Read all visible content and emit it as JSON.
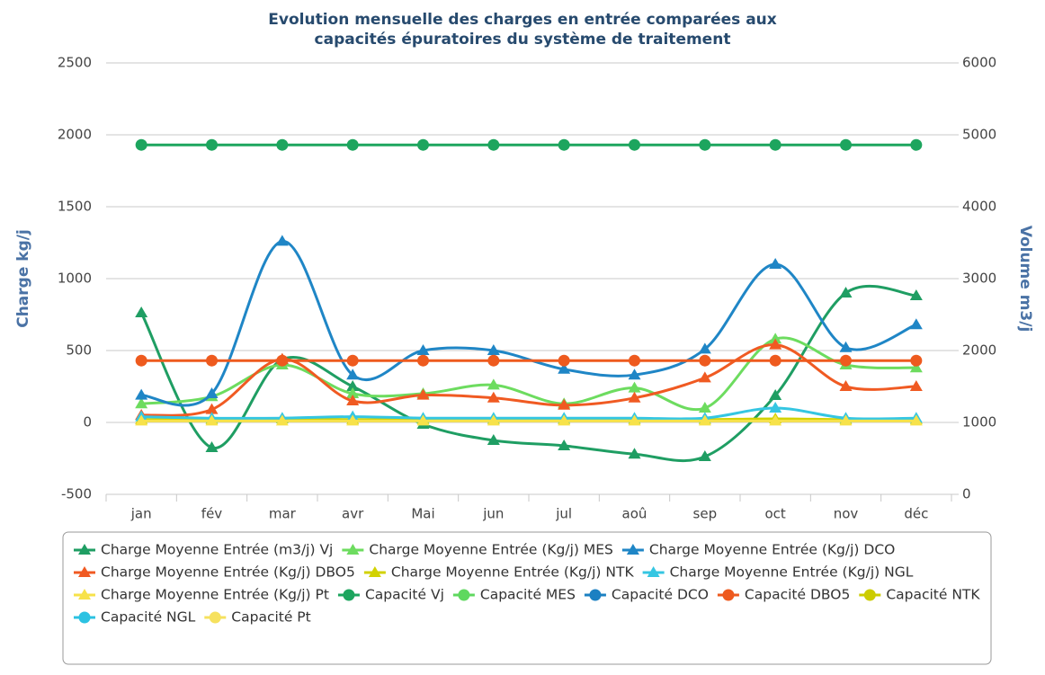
{
  "chart_data": {
    "type": "line",
    "title": [
      "Evolution mensuelle des charges en entrée comparées aux",
      "capacités épuratoires du système de traitement"
    ],
    "y_label": "Charge kg/j",
    "y2_label": "Volume m3/j",
    "categories": [
      "jan",
      "fév",
      "mar",
      "avr",
      "Mai",
      "jun",
      "jul",
      "aoû",
      "sep",
      "oct",
      "nov",
      "déc"
    ],
    "ylim": [
      -500,
      2500
    ],
    "yticks": [
      -500,
      0,
      500,
      1000,
      1500,
      2000,
      2500
    ],
    "y2lim": [
      0,
      6000
    ],
    "y2ticks": [
      0,
      1000,
      2000,
      3000,
      4000,
      5000,
      6000
    ],
    "grid": true,
    "smooth": true,
    "legend_position": "bottom",
    "series": [
      {
        "name": "Charge Moyenne Entrée (m3/j) Vj",
        "color": "#1f9e63",
        "marker": "triangle",
        "axis": "y2",
        "values": [
          2525,
          650,
          1875,
          1500,
          975,
          750,
          675,
          560,
          525,
          1375,
          2800,
          2763
        ]
      },
      {
        "name": "Charge Moyenne Entrée (Kg/j) MES",
        "color": "#6ddc5f",
        "marker": "triangle",
        "values": [
          130,
          180,
          400,
          200,
          200,
          260,
          130,
          240,
          100,
          580,
          400,
          380
        ]
      },
      {
        "name": "Charge Moyenne Entrée (Kg/j) DCO",
        "color": "#1f86c6",
        "marker": "triangle",
        "values": [
          190,
          200,
          1260,
          330,
          500,
          500,
          370,
          330,
          510,
          1100,
          520,
          680
        ]
      },
      {
        "name": "Charge Moyenne Entrée (Kg/j) DBO5",
        "color": "#f05a22",
        "marker": "triangle",
        "values": [
          50,
          90,
          440,
          150,
          190,
          170,
          120,
          170,
          310,
          540,
          250,
          250
        ]
      },
      {
        "name": "Charge Moyenne Entrée (Kg/j) NTK",
        "color": "#d2d200",
        "marker": "triangle",
        "values": [
          20,
          20,
          25,
          20,
          20,
          20,
          20,
          20,
          20,
          25,
          20,
          20
        ]
      },
      {
        "name": "Charge Moyenne Entrée (Kg/j) NGL",
        "color": "#35c6e2",
        "marker": "triangle",
        "values": [
          40,
          30,
          30,
          40,
          30,
          30,
          30,
          30,
          30,
          100,
          30,
          30
        ]
      },
      {
        "name": "Charge Moyenne Entrée (Kg/j) Pt",
        "color": "#f7e24a",
        "marker": "triangle",
        "values": [
          10,
          10,
          10,
          10,
          10,
          10,
          10,
          10,
          10,
          10,
          10,
          10
        ]
      },
      {
        "name": "Capacité Vj",
        "color": "#1da55e",
        "marker": "circle",
        "axis": "y2",
        "values": [
          4860,
          4860,
          4860,
          4860,
          4860,
          4860,
          4860,
          4860,
          4860,
          4860,
          4860,
          4860
        ]
      },
      {
        "name": "Capacité MES",
        "color": "#5fd85f",
        "marker": "circle",
        "values": [
          null,
          null,
          null,
          null,
          null,
          null,
          null,
          null,
          null,
          null,
          null,
          null
        ]
      },
      {
        "name": "Capacité DCO",
        "color": "#1b80c2",
        "marker": "circle",
        "values": [
          null,
          null,
          null,
          null,
          null,
          null,
          null,
          null,
          null,
          null,
          null,
          null
        ]
      },
      {
        "name": "Capacité DBO5",
        "color": "#ee5a1e",
        "marker": "circle",
        "values": [
          430,
          430,
          430,
          430,
          430,
          430,
          430,
          430,
          430,
          430,
          430,
          430
        ]
      },
      {
        "name": "Capacité NTK",
        "color": "#cccc00",
        "marker": "circle",
        "values": [
          null,
          null,
          null,
          null,
          null,
          null,
          null,
          null,
          null,
          null,
          null,
          null
        ]
      },
      {
        "name": "Capacité NGL",
        "color": "#2cc2e2",
        "marker": "circle",
        "values": [
          null,
          null,
          null,
          null,
          null,
          null,
          null,
          null,
          null,
          null,
          null,
          null
        ]
      },
      {
        "name": "Capacité Pt",
        "color": "#f6e15e",
        "marker": "circle",
        "values": [
          null,
          null,
          null,
          null,
          null,
          null,
          null,
          null,
          null,
          null,
          null,
          null
        ]
      }
    ]
  }
}
